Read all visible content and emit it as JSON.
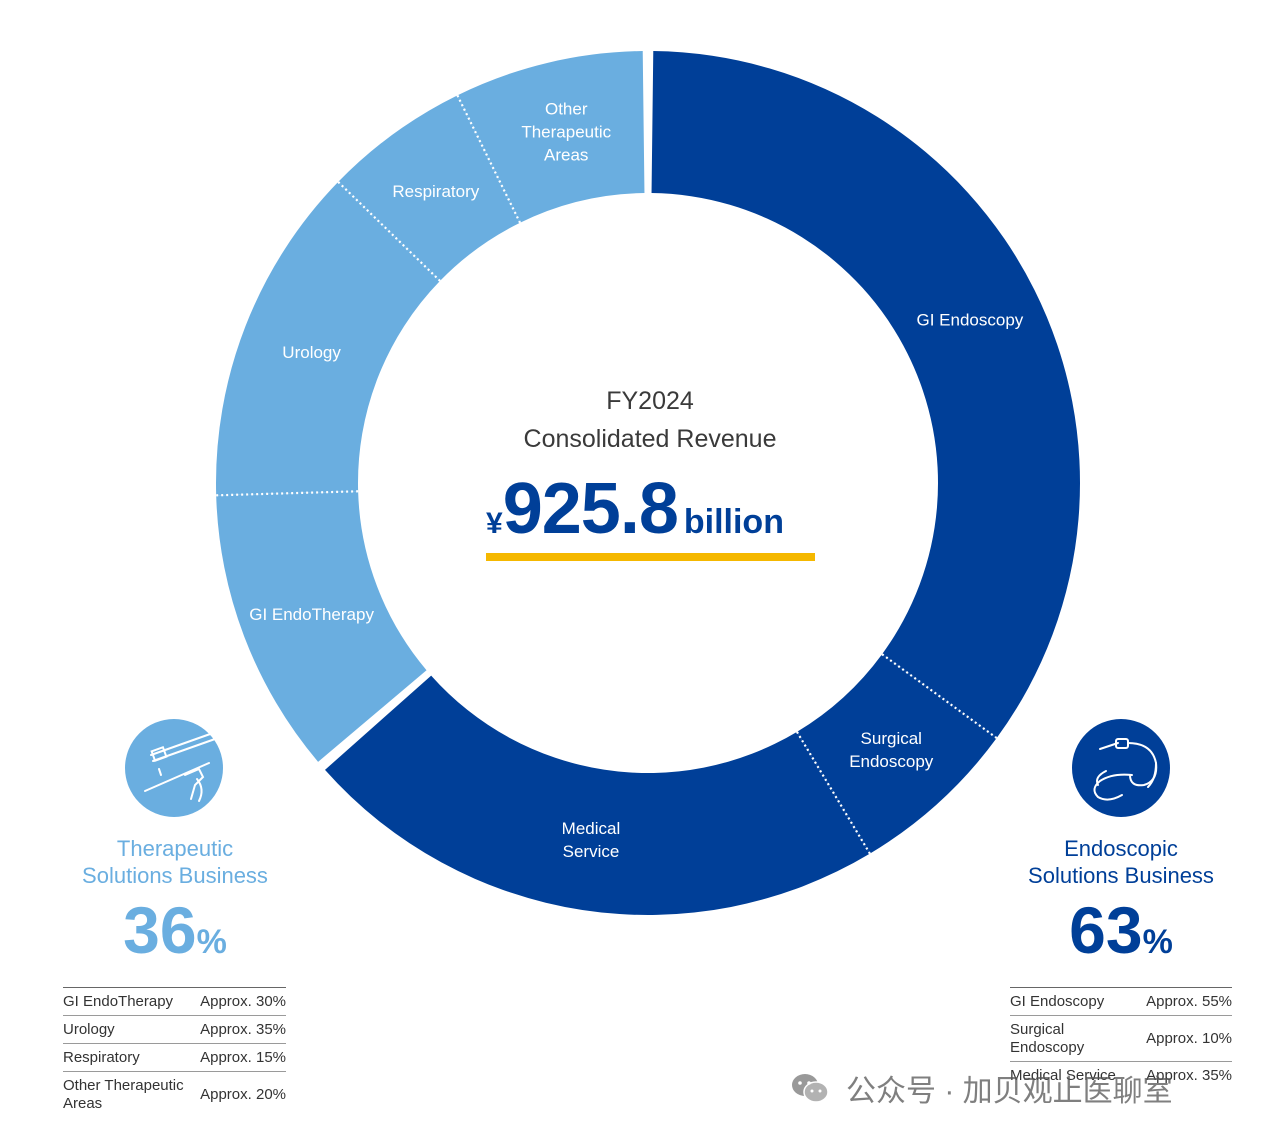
{
  "chart_data": {
    "type": "pie",
    "title": "",
    "center": {
      "line1": "FY2024",
      "line2": "Consolidated Revenue",
      "currency": "¥",
      "amount": "925.8",
      "unit": "billion"
    },
    "segments": [
      {
        "label": "GI Endoscopy",
        "group": "endoscopic",
        "value": 34.7
      },
      {
        "label": "Surgical Endoscopy",
        "group": "endoscopic",
        "value": 6.3
      },
      {
        "label": "Medical Service",
        "group": "endoscopic",
        "value": 22.0
      },
      {
        "label": "GI EndoTherapy",
        "group": "therapeutic",
        "value": 10.8
      },
      {
        "label": "Urology",
        "group": "therapeutic",
        "value": 12.6
      },
      {
        "label": "Respiratory",
        "group": "therapeutic",
        "value": 5.4
      },
      {
        "label": "Other Therapeutic Areas",
        "group": "therapeutic",
        "value": 7.2
      }
    ],
    "groups": {
      "therapeutic": {
        "title_line1": "Therapeutic",
        "title_line2": "Solutions Business",
        "percent": "36",
        "percent_sign": "%",
        "color": "#6aaee0",
        "breakdown": [
          {
            "name": "GI EndoTherapy",
            "share": "Approx. 30%"
          },
          {
            "name": "Urology",
            "share": "Approx. 35%"
          },
          {
            "name": "Respiratory",
            "share": "Approx. 15%"
          },
          {
            "name": "Other Therapeutic Areas",
            "share": "Approx. 20%"
          }
        ]
      },
      "endoscopic": {
        "title_line1": "Endoscopic",
        "title_line2": "Solutions Business",
        "percent": "63",
        "percent_sign": "%",
        "color": "#003f98",
        "breakdown": [
          {
            "name": "GI Endoscopy",
            "share": "Approx. 55%"
          },
          {
            "name": "Surgical Endoscopy",
            "share": "Approx. 10%"
          },
          {
            "name": "Medical Service",
            "share": "Approx. 35%"
          }
        ]
      }
    },
    "accent_color": "#f5b800"
  },
  "watermark": {
    "text": "公众号 · 加贝观止医聊室",
    "icon": "wechat-icon"
  }
}
